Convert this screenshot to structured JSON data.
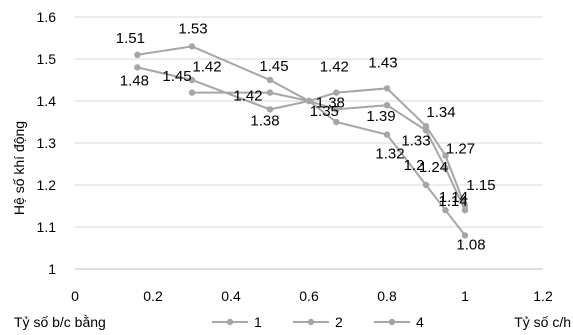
{
  "chart_data": {
    "type": "line",
    "title": "",
    "xlabel": "Tỷ số c/h",
    "ylabel": "Hệ số khí động",
    "xlim": [
      0,
      1.2
    ],
    "ylim": [
      1,
      1.6
    ],
    "xticks": [
      "0",
      "0.2",
      "0.4",
      "0.6",
      "0.8",
      "1",
      "1.2"
    ],
    "yticks": [
      "1",
      "1.1",
      "1.2",
      "1.3",
      "1.4",
      "1.5",
      "1.6"
    ],
    "grid": "horizontal",
    "legend_title": "Tỷ số b/c bằng",
    "legend_position": "bottom",
    "series": [
      {
        "name": "1",
        "color": "#a6a6a6",
        "points": [
          {
            "x": 0.3,
            "y": 1.42,
            "label": "1.42"
          },
          {
            "x": 0.5,
            "y": 1.42,
            "label": "1.42"
          },
          {
            "x": 0.6,
            "y": 1.4
          },
          {
            "x": 0.67,
            "y": 1.42,
            "label": "1.42"
          },
          {
            "x": 0.8,
            "y": 1.43,
            "label": "1.43"
          },
          {
            "x": 0.9,
            "y": 1.34,
            "label": "1.34"
          },
          {
            "x": 0.95,
            "y": 1.27,
            "label": "1.27"
          },
          {
            "x": 1.0,
            "y": 1.15,
            "label": "1.15"
          }
        ]
      },
      {
        "name": "2",
        "color": "#a6a6a6",
        "points": [
          {
            "x": 0.16,
            "y": 1.48,
            "label": "1.48"
          },
          {
            "x": 0.3,
            "y": 1.45,
            "label": "1.45"
          },
          {
            "x": 0.5,
            "y": 1.38,
            "label": "1.38"
          },
          {
            "x": 0.6,
            "y": 1.4
          },
          {
            "x": 0.67,
            "y": 1.38,
            "label": "1.38"
          },
          {
            "x": 0.8,
            "y": 1.39,
            "label": "1.39"
          },
          {
            "x": 0.9,
            "y": 1.33,
            "label": "1.33"
          },
          {
            "x": 0.95,
            "y": 1.24,
            "label": "1.24"
          },
          {
            "x": 1.0,
            "y": 1.14,
            "label": "1.14"
          }
        ]
      },
      {
        "name": "4",
        "color": "#a6a6a6",
        "points": [
          {
            "x": 0.16,
            "y": 1.51,
            "label": "1.51"
          },
          {
            "x": 0.3,
            "y": 1.53,
            "label": "1.53"
          },
          {
            "x": 0.5,
            "y": 1.45,
            "label": "1.45"
          },
          {
            "x": 0.6,
            "y": 1.4
          },
          {
            "x": 0.67,
            "y": 1.35,
            "label": "1.35"
          },
          {
            "x": 0.8,
            "y": 1.32,
            "label": "1.32"
          },
          {
            "x": 0.9,
            "y": 1.2,
            "label": "1.2"
          },
          {
            "x": 0.95,
            "y": 1.14,
            "label": "1.14"
          },
          {
            "x": 1.0,
            "y": 1.08,
            "label": "1.08"
          }
        ]
      }
    ]
  }
}
